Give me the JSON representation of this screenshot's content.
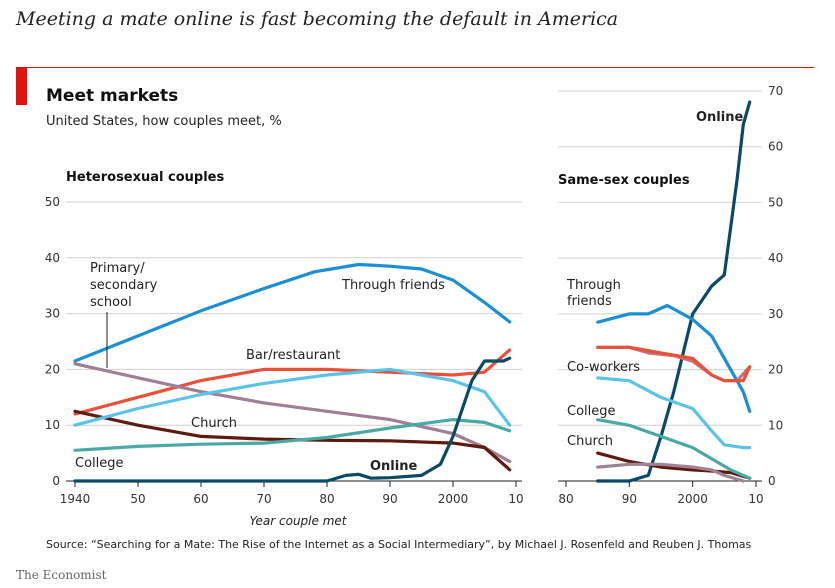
{
  "headline": "Meeting a mate online is fast becoming the default in America",
  "title": "Meet markets",
  "subtitle": "United States, how couples meet, %",
  "source": "Source: “Searching for a Mate: The Rise of the Internet as a Social Intermediary”, by Michael J. Rosenfeld and Reuben J. Thomas",
  "brand": "The Economist",
  "colors": {
    "friends": "#1b8fd6",
    "bar": "#e8503a",
    "college": "#5bc3e8",
    "school": "#a07e96",
    "church": "#5e1a0f",
    "online": "#0a4a66",
    "college_het": "#4aa9a4",
    "coworkers": "#c9717f",
    "church_ss": "#a08294"
  },
  "chart_data": [
    {
      "type": "line",
      "title": "Heterosexual couples",
      "xlabel": "Year couple met",
      "ylabel": "",
      "xlim": [
        1940,
        2010
      ],
      "ylim": [
        0,
        50
      ],
      "x_ticks": [
        "1940",
        "50",
        "60",
        "70",
        "80",
        "90",
        "2000",
        "10"
      ],
      "y_ticks": [
        "0",
        "10",
        "20",
        "30",
        "40",
        "50"
      ],
      "grid": true,
      "series": [
        {
          "name": "Through friends",
          "key": "friends",
          "x": [
            1940,
            1950,
            1960,
            1970,
            1978,
            1985,
            1990,
            1995,
            2000,
            2005,
            2009
          ],
          "values": [
            21.5,
            26,
            30.5,
            34.5,
            37.5,
            38.8,
            38.5,
            38,
            36,
            32,
            28.5
          ]
        },
        {
          "name": "Bar/restaurant",
          "key": "bar",
          "x": [
            1940,
            1950,
            1960,
            1970,
            1980,
            1990,
            2000,
            2005,
            2009
          ],
          "values": [
            12,
            15,
            18,
            20,
            20,
            19.5,
            19,
            19.5,
            23.5
          ]
        },
        {
          "name": "Primary/ secondary school",
          "key": "school",
          "x": [
            1940,
            1950,
            1960,
            1970,
            1980,
            1990,
            2000,
            2005,
            2009
          ],
          "values": [
            21,
            18.5,
            16,
            14,
            12.5,
            11,
            8.5,
            6,
            3.5
          ]
        },
        {
          "name": "Church",
          "key": "church",
          "x": [
            1940,
            1950,
            1960,
            1970,
            1980,
            1990,
            2000,
            2005,
            2009
          ],
          "values": [
            12.5,
            10,
            8,
            7.5,
            7.3,
            7.2,
            6.8,
            6,
            2
          ]
        },
        {
          "name": "College",
          "key": "college_het",
          "x": [
            1940,
            1950,
            1960,
            1970,
            1980,
            1990,
            2000,
            2005,
            2009
          ],
          "values": [
            5.5,
            6.2,
            6.6,
            6.8,
            7.8,
            9.5,
            11,
            10.5,
            9
          ]
        },
        {
          "name": "",
          "key": "college",
          "x": [
            1940,
            1950,
            1960,
            1970,
            1980,
            1990,
            2000,
            2005,
            2009
          ],
          "values": [
            10,
            13,
            15.5,
            17.5,
            19,
            20,
            18,
            16,
            10
          ]
        },
        {
          "name": "Online",
          "key": "online",
          "x": [
            1940,
            1980,
            1983,
            1985,
            1987,
            1990,
            1995,
            1998,
            2000,
            2003,
            2005,
            2008,
            2009
          ],
          "values": [
            0,
            0,
            1,
            1.2,
            0.5,
            0.6,
            1,
            3,
            8,
            18,
            21.5,
            21.5,
            22
          ]
        }
      ]
    },
    {
      "type": "line",
      "title": "Same-sex couples",
      "xlabel": "",
      "ylabel": "",
      "xlim": [
        1980,
        2010
      ],
      "ylim": [
        0,
        70
      ],
      "x_ticks": [
        "80",
        "90",
        "2000",
        "10"
      ],
      "y_ticks": [
        "0",
        "10",
        "20",
        "30",
        "40",
        "50",
        "60",
        "70"
      ],
      "grid": true,
      "series": [
        {
          "name": "Online",
          "key": "online",
          "x": [
            1985,
            1990,
            1993,
            1995,
            1997,
            2000,
            2003,
            2005,
            2007,
            2008,
            2009
          ],
          "values": [
            0,
            0,
            1,
            8,
            16,
            30,
            35,
            37,
            54,
            64,
            68
          ]
        },
        {
          "name": "Through friends",
          "key": "friends",
          "x": [
            1985,
            1990,
            1993,
            1996,
            2000,
            2003,
            2006,
            2008,
            2009
          ],
          "values": [
            28.5,
            30,
            30,
            31.5,
            29,
            26,
            20,
            16,
            12.5
          ]
        },
        {
          "name": "Co-workers",
          "key": "coworkers",
          "x": [
            1985,
            1990,
            1993,
            1997,
            2000,
            2003,
            2005,
            2007,
            2009
          ],
          "values": [
            24,
            24,
            23,
            22.5,
            21.5,
            19,
            18,
            18,
            20.5
          ]
        },
        {
          "name": "",
          "key": "bar",
          "x": [
            1985,
            1990,
            1995,
            2000,
            2003,
            2005,
            2008,
            2009
          ],
          "values": [
            24,
            24,
            23,
            22,
            19,
            18,
            18,
            20.5
          ]
        },
        {
          "name": "College",
          "key": "college",
          "x": [
            1985,
            1990,
            1995,
            2000,
            2003,
            2005,
            2008,
            2009
          ],
          "values": [
            18.5,
            18,
            15,
            13,
            9,
            6.5,
            6,
            6
          ]
        },
        {
          "name": "Church",
          "key": "church",
          "x": [
            1985,
            1990,
            1995,
            2000,
            2003,
            2006,
            2009
          ],
          "values": [
            5,
            3.5,
            2.5,
            2,
            1.8,
            1.5,
            0.5
          ]
        },
        {
          "name": "",
          "key": "church_ss",
          "x": [
            1985,
            1990,
            1995,
            2000,
            2003,
            2005,
            2008
          ],
          "values": [
            2.5,
            3,
            3,
            2.5,
            2,
            1,
            0
          ]
        },
        {
          "name": "",
          "key": "college_het",
          "x": [
            1985,
            1990,
            1995,
            2000,
            2003,
            2006,
            2009
          ],
          "values": [
            11,
            10,
            8,
            6,
            4,
            2,
            0.5
          ]
        }
      ]
    }
  ],
  "labels": {
    "het_online": "Online",
    "het_friends": "Through friends",
    "het_bar": "Bar/restaurant",
    "het_church": "Church",
    "het_college": "College",
    "het_school_1": "Primary/",
    "het_school_2": "secondary",
    "het_school_3": "school",
    "ss_online": "Online",
    "ss_friends_1": "Through",
    "ss_friends_2": "friends",
    "ss_coworkers": "Co-workers",
    "ss_college": "College",
    "ss_church": "Church"
  }
}
